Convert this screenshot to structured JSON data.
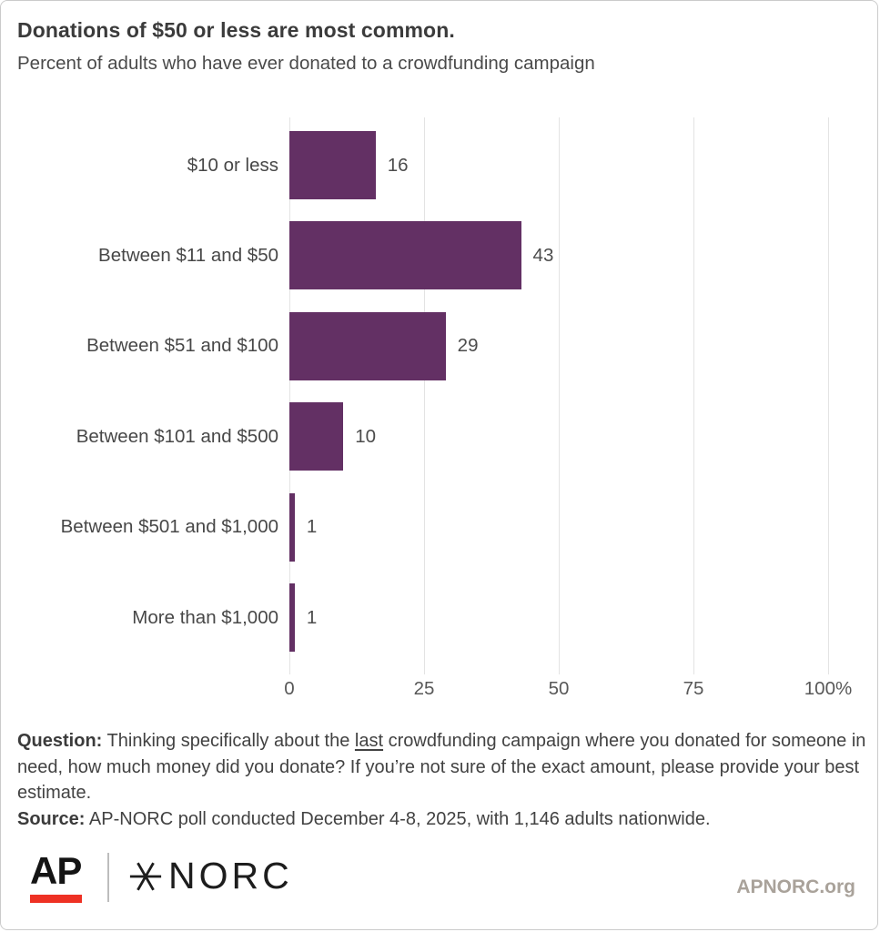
{
  "header": {
    "title": "Donations of $50 or less are most common.",
    "subtitle": "Percent of adults who have ever donated to a crowdfunding campaign"
  },
  "chart_data": {
    "type": "bar",
    "orientation": "horizontal",
    "categories": [
      "$10 or less",
      "Between $11 and $50",
      "Between $51 and $100",
      "Between $101 and $500",
      "Between $501 and $1,000",
      "More than $1,000"
    ],
    "values": [
      16,
      43,
      29,
      10,
      1,
      1
    ],
    "title": "Donations of $50 or less are most common.",
    "subtitle": "Percent of adults who have ever donated to a crowdfunding campaign",
    "xlabel": "",
    "ylabel": "",
    "xlim": [
      0,
      100
    ],
    "x_tick_values": [
      0,
      25,
      50,
      75,
      100
    ],
    "x_tick_labels": [
      "0",
      "25",
      "50",
      "75",
      "100%"
    ],
    "grid": true,
    "legend": false,
    "value_labels": true,
    "bar_color": "#633064",
    "gridline_color": "#e3e3e3"
  },
  "footer": {
    "question_label": "Question:",
    "question_pre": " Thinking specifically about the ",
    "question_underlined": "last",
    "question_post": " crowdfunding campaign where you donated for someone in need, how much money did you donate? If you’re not sure of the exact amount, please provide your best estimate.",
    "source_label": "Source:",
    "source_text": " AP-NORC poll conducted December 4-8, 2025, with 1,146 adults nationwide."
  },
  "branding": {
    "ap_logo": "AP",
    "norc_logo": "NORC",
    "website": "APNORC.org",
    "ap_red": "#ee3124",
    "logo_color": "#141414"
  }
}
